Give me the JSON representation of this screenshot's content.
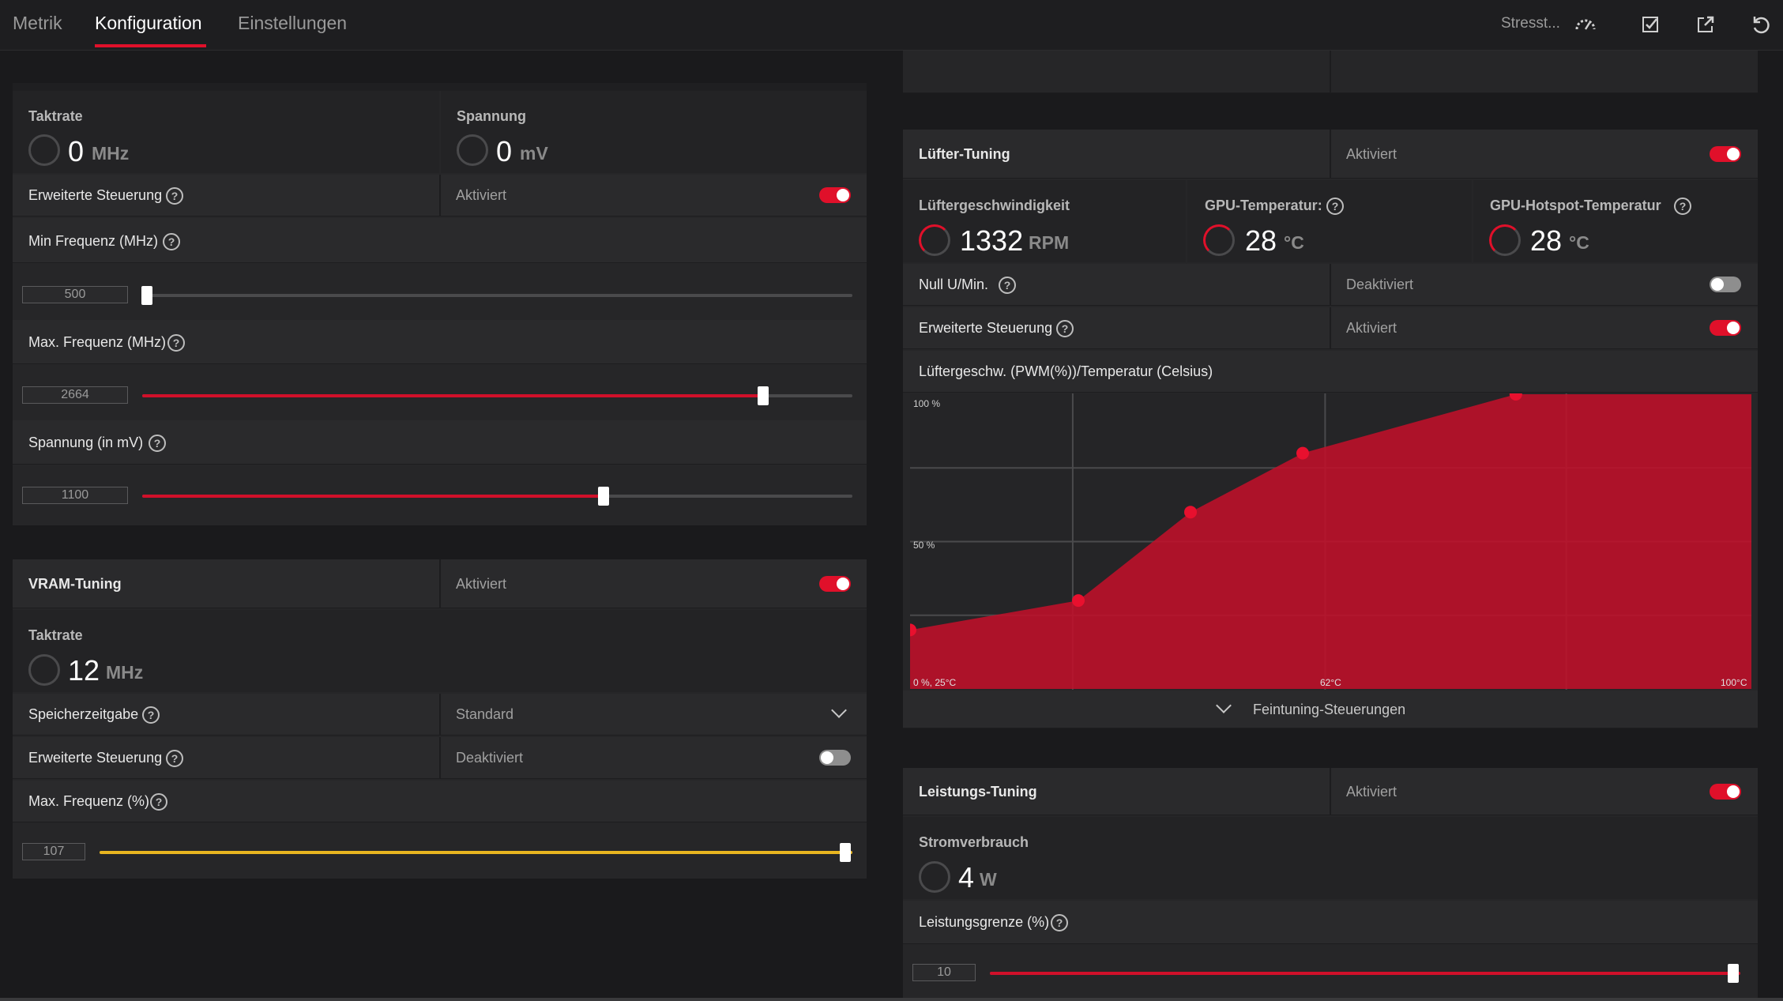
{
  "nav": {
    "tabs": [
      {
        "label": "Metrik"
      },
      {
        "label": "Konfiguration"
      },
      {
        "label": "Einstellungen"
      }
    ],
    "stress_label": "Stresst...",
    "icons": [
      "performance-gauge-icon",
      "save-check-icon",
      "export-icon",
      "reset-icon"
    ]
  },
  "gpu_tuning": {
    "clock": {
      "label": "Taktrate",
      "value": "0",
      "unit": "MHz"
    },
    "voltage": {
      "label": "Spannung",
      "value": "0",
      "unit": "mV"
    },
    "advanced": {
      "label": "Erweiterte Steuerung",
      "state": "Aktiviert",
      "enabled": true
    },
    "min_freq": {
      "label": "Min Frequenz (MHz)",
      "value": "500",
      "fraction": 0.0
    },
    "max_freq": {
      "label": "Max. Frequenz (MHz)",
      "value": "2664",
      "fraction": 0.874
    },
    "voltage_mv": {
      "label": "Spannung (in mV)",
      "value": "1100",
      "fraction": 0.65
    }
  },
  "vram_tuning": {
    "title": "VRAM-Tuning",
    "state": "Aktiviert",
    "enabled": true,
    "clock": {
      "label": "Taktrate",
      "value": "12",
      "unit": "MHz"
    },
    "memory_timing": {
      "label": "Speicherzeitgabe",
      "value": "Standard"
    },
    "advanced": {
      "label": "Erweiterte Steuerung",
      "state": "Deaktiviert",
      "enabled": false
    },
    "max_freq": {
      "label": "Max. Frequenz (%)",
      "value": "107",
      "fraction": 1.0
    }
  },
  "fan_tuning": {
    "title": "Lüfter-Tuning",
    "state": "Aktiviert",
    "enabled": true,
    "fan_speed": {
      "label": "Lüftergeschwindigkeit",
      "value": "1332",
      "unit": "RPM"
    },
    "gpu_temp": {
      "label": "GPU-Temperatur:",
      "value": "28",
      "unit": "°C"
    },
    "hotspot_temp": {
      "label": "GPU-Hotspot-Temperatur",
      "value": "28",
      "unit": "°C"
    },
    "zero_rpm": {
      "label": "Null U/Min.",
      "state": "Deaktiviert",
      "enabled": false
    },
    "advanced": {
      "label": "Erweiterte Steuerung",
      "state": "Aktiviert",
      "enabled": true
    },
    "curve_title": "Lüftergeschw. (PWM(%))/Temperatur (Celsius)",
    "fine_tune": "Feintuning-Steuerungen"
  },
  "power_tuning": {
    "title": "Leistungs-Tuning",
    "state": "Aktiviert",
    "enabled": true,
    "power": {
      "label": "Stromverbrauch",
      "value": "4",
      "unit": "W"
    },
    "limit": {
      "label": "Leistungsgrenze (%)",
      "value": "10",
      "fraction": 1.0
    }
  },
  "chart_data": {
    "type": "area",
    "title": "Lüftergeschw. (PWM(%))/Temperatur (Celsius)",
    "x_tick_labels": [
      "0 %, 25°C",
      "62°C",
      "100°C"
    ],
    "y_tick_labels": [
      "100 %",
      "50 %"
    ],
    "xlim": [
      25,
      100
    ],
    "ylim": [
      0,
      100
    ],
    "grid": true,
    "series": [
      {
        "x": [
          25,
          40,
          50,
          60,
          79
        ],
        "y": [
          20,
          30,
          60,
          80,
          100
        ]
      }
    ],
    "color": "#c0102a"
  }
}
